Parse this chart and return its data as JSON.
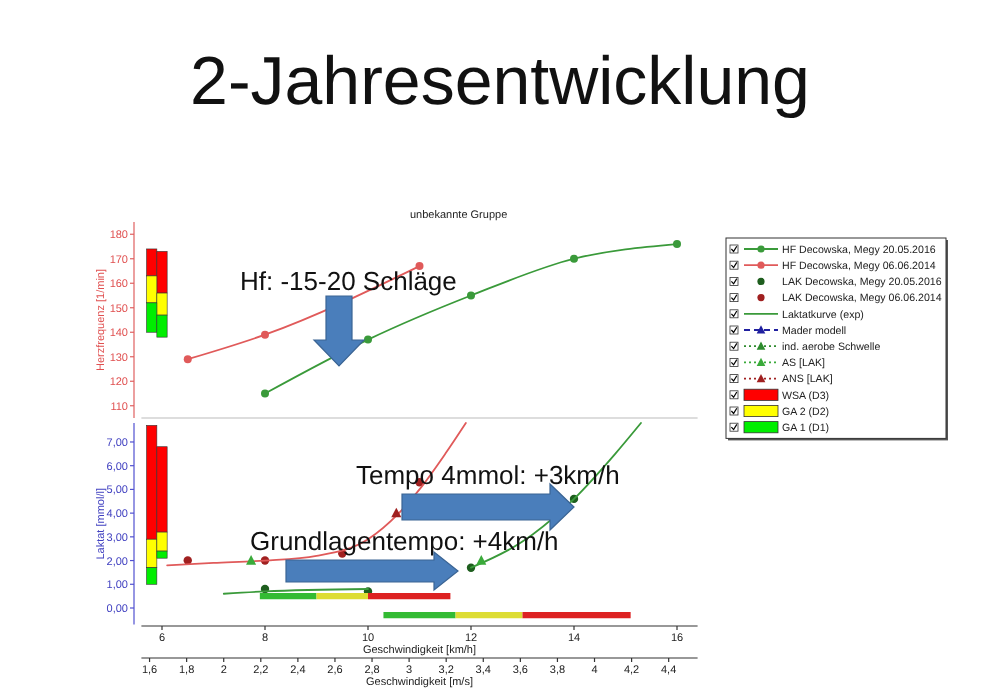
{
  "chart_data": [
    {
      "type": "line",
      "title": "2-Jahresentwicklung",
      "subtitle": "unbekannte Gruppe",
      "ylabel": "Herzfrequenz [1/min]",
      "xlim": [
        5.6,
        16.4
      ],
      "ylim": [
        105,
        185
      ],
      "yticks": [
        110,
        120,
        130,
        140,
        150,
        160,
        170,
        180
      ],
      "tick_labels": "y",
      "series": [
        {
          "name": "HF Decowska, Megy 20.05.2016",
          "marker": "circle",
          "color": "#3a9a3a",
          "x": [
            8,
            10,
            12,
            14,
            16
          ],
          "values": [
            115,
            137,
            155,
            170,
            176
          ]
        },
        {
          "name": "HF Decowska, Megy 06.06.2014",
          "marker": "circle",
          "color": "#e05a5a",
          "x": [
            6.5,
            8,
            11
          ],
          "values": [
            129,
            139,
            167
          ]
        },
        {
          "type": "bar",
          "color": "#ff0000",
          "x": [
            5.8,
            6.0
          ],
          "base": [
            163,
            156
          ],
          "values": [
            11,
            17
          ]
        },
        {
          "type": "bar",
          "color": "#ffff00",
          "x": [
            5.8,
            6.0
          ],
          "base": [
            152,
            147
          ],
          "values": [
            11,
            9
          ]
        },
        {
          "type": "bar",
          "color": "#00ee00",
          "x": [
            5.8,
            6.0
          ],
          "base": [
            140,
            138
          ],
          "values": [
            12,
            9
          ]
        }
      ]
    },
    {
      "type": "line",
      "xlabel": "Geschwindigkeit [km/h]",
      "x2label": "Geschwindigkeit [m/s]",
      "ylabel": "Laktat [mmol/l]",
      "legend": "right",
      "xlim": [
        5.6,
        16.4
      ],
      "xticks": [
        6,
        8,
        10,
        12,
        14,
        16
      ],
      "x2lim": [
        1.556,
        4.556
      ],
      "x2ticks": [
        {
          "value": 1.6,
          "label": "1,6"
        },
        {
          "value": 1.8,
          "label": "1,8"
        },
        {
          "value": 2,
          "label": "2"
        },
        {
          "value": 2.2,
          "label": "2,2"
        },
        {
          "value": 2.4,
          "label": "2,4"
        },
        {
          "value": 2.6,
          "label": "2,6"
        },
        {
          "value": 2.8,
          "label": "2,8"
        },
        {
          "value": 3,
          "label": "3"
        },
        {
          "value": 3.2,
          "label": "3,2"
        },
        {
          "value": 3.4,
          "label": "3,4"
        },
        {
          "value": 3.6,
          "label": "3,6"
        },
        {
          "value": 3.8,
          "label": "3,8"
        },
        {
          "value": 4,
          "label": "4"
        },
        {
          "value": 4.2,
          "label": "4,2"
        },
        {
          "value": 4.4,
          "label": "4,4"
        }
      ],
      "ylim": [
        -0.7,
        7.8
      ],
      "yticks": [
        {
          "value": 0,
          "label": "0,00"
        },
        {
          "value": 1,
          "label": "1,00"
        },
        {
          "value": 2,
          "label": "2,00"
        },
        {
          "value": 3,
          "label": "3,00"
        },
        {
          "value": 4,
          "label": "4,00"
        },
        {
          "value": 5,
          "label": "5,00"
        },
        {
          "value": 6,
          "label": "6,00"
        },
        {
          "value": 7,
          "label": "7,00"
        }
      ],
      "series": [
        {
          "name": "LAK Decowska, Megy 20.05.2016",
          "type": "scatter",
          "marker": "circle",
          "color": "#1e5e1e",
          "x": [
            8,
            10,
            12,
            14
          ],
          "values": [
            0.8,
            0.7,
            1.7,
            4.6
          ]
        },
        {
          "name": "LAK Decowska, Megy 06.06.2014",
          "type": "scatter",
          "marker": "circle",
          "color": "#a02020",
          "x": [
            6.5,
            8,
            9.5,
            11
          ],
          "values": [
            2.0,
            2.0,
            2.3,
            5.3
          ]
        },
        {
          "name": "Laktatkurve (exp)",
          "marker": "none",
          "color": "#3a9a3a",
          "x": [
            7.2,
            8,
            10,
            11,
            12,
            13,
            14,
            14.8,
            15.3
          ],
          "values": [
            0.6,
            0.7,
            0.8,
            null,
            1.7,
            2.8,
            4.6,
            6.5,
            7.8
          ]
        },
        {
          "marker": "none",
          "color": "#e05a5a",
          "x": [
            6.1,
            7,
            8,
            9,
            10,
            10.6,
            11,
            11.5,
            11.9
          ],
          "values": [
            1.8,
            1.9,
            2.0,
            2.2,
            2.9,
            4.0,
            5.0,
            6.5,
            7.8
          ]
        },
        {
          "name": "Mader modell",
          "type": "scatter",
          "marker": "triangle",
          "line_style": "dashed",
          "color": "#2020a0"
        },
        {
          "name": "ind. aerobe Schwelle",
          "type": "scatter",
          "marker": "triangle",
          "line_style": "dotted",
          "color": "#2e8b2e"
        },
        {
          "name": "AS [LAK]",
          "type": "scatter",
          "marker": "triangle",
          "line_style": "dotted",
          "color": "#3aaa3a",
          "x": [
            7.73,
            12.2
          ],
          "values": [
            2.0,
            2.0
          ]
        },
        {
          "name": "ANS [LAK]",
          "type": "scatter",
          "marker": "triangle",
          "line_style": "dotted",
          "color": "#a02020",
          "x": [
            10.55
          ],
          "values": [
            4.0
          ]
        },
        {
          "name": "WSA (D3)",
          "type": "bar",
          "color": "#ff0000",
          "x": [
            5.8,
            6.0
          ],
          "base": [
            2.9,
            3.2
          ],
          "values": [
            4.8,
            3.6
          ]
        },
        {
          "name": "GA 2 (D2)",
          "type": "bar",
          "color": "#ffff00",
          "x": [
            5.8,
            6.0
          ],
          "base": [
            1.7,
            2.4
          ],
          "values": [
            1.2,
            0.8
          ]
        },
        {
          "name": "GA 1 (D1)",
          "type": "bar",
          "color": "#00ee00",
          "x": [
            5.8,
            6.0
          ],
          "base": [
            1.0,
            2.1
          ],
          "values": [
            0.7,
            0.3
          ]
        },
        {
          "marker": "none",
          "color": "#33bb33",
          "x": [
            7.9,
            9.0
          ],
          "values": [
            0.5,
            0.5
          ]
        },
        {
          "marker": "none",
          "color": "#dddd33",
          "x": [
            9.0,
            10.0
          ],
          "values": [
            0.5,
            0.5
          ]
        },
        {
          "marker": "none",
          "color": "#dd2222",
          "x": [
            10.0,
            11.6
          ],
          "values": [
            0.5,
            0.5
          ]
        },
        {
          "marker": "none",
          "color": "#33bb33",
          "x": [
            10.3,
            11.7
          ],
          "values": [
            -0.3,
            -0.3
          ]
        },
        {
          "marker": "none",
          "color": "#dddd33",
          "x": [
            11.7,
            13.0
          ],
          "values": [
            -0.3,
            -0.3
          ]
        },
        {
          "marker": "none",
          "color": "#dd2222",
          "x": [
            13.0,
            15.1
          ],
          "values": [
            -0.3,
            -0.3
          ]
        }
      ],
      "annotations": [
        "Hf: -15-20 Schläge",
        "Tempo 4mmol: +3km/h",
        "Grundlagentempo: +4km/h"
      ]
    }
  ]
}
